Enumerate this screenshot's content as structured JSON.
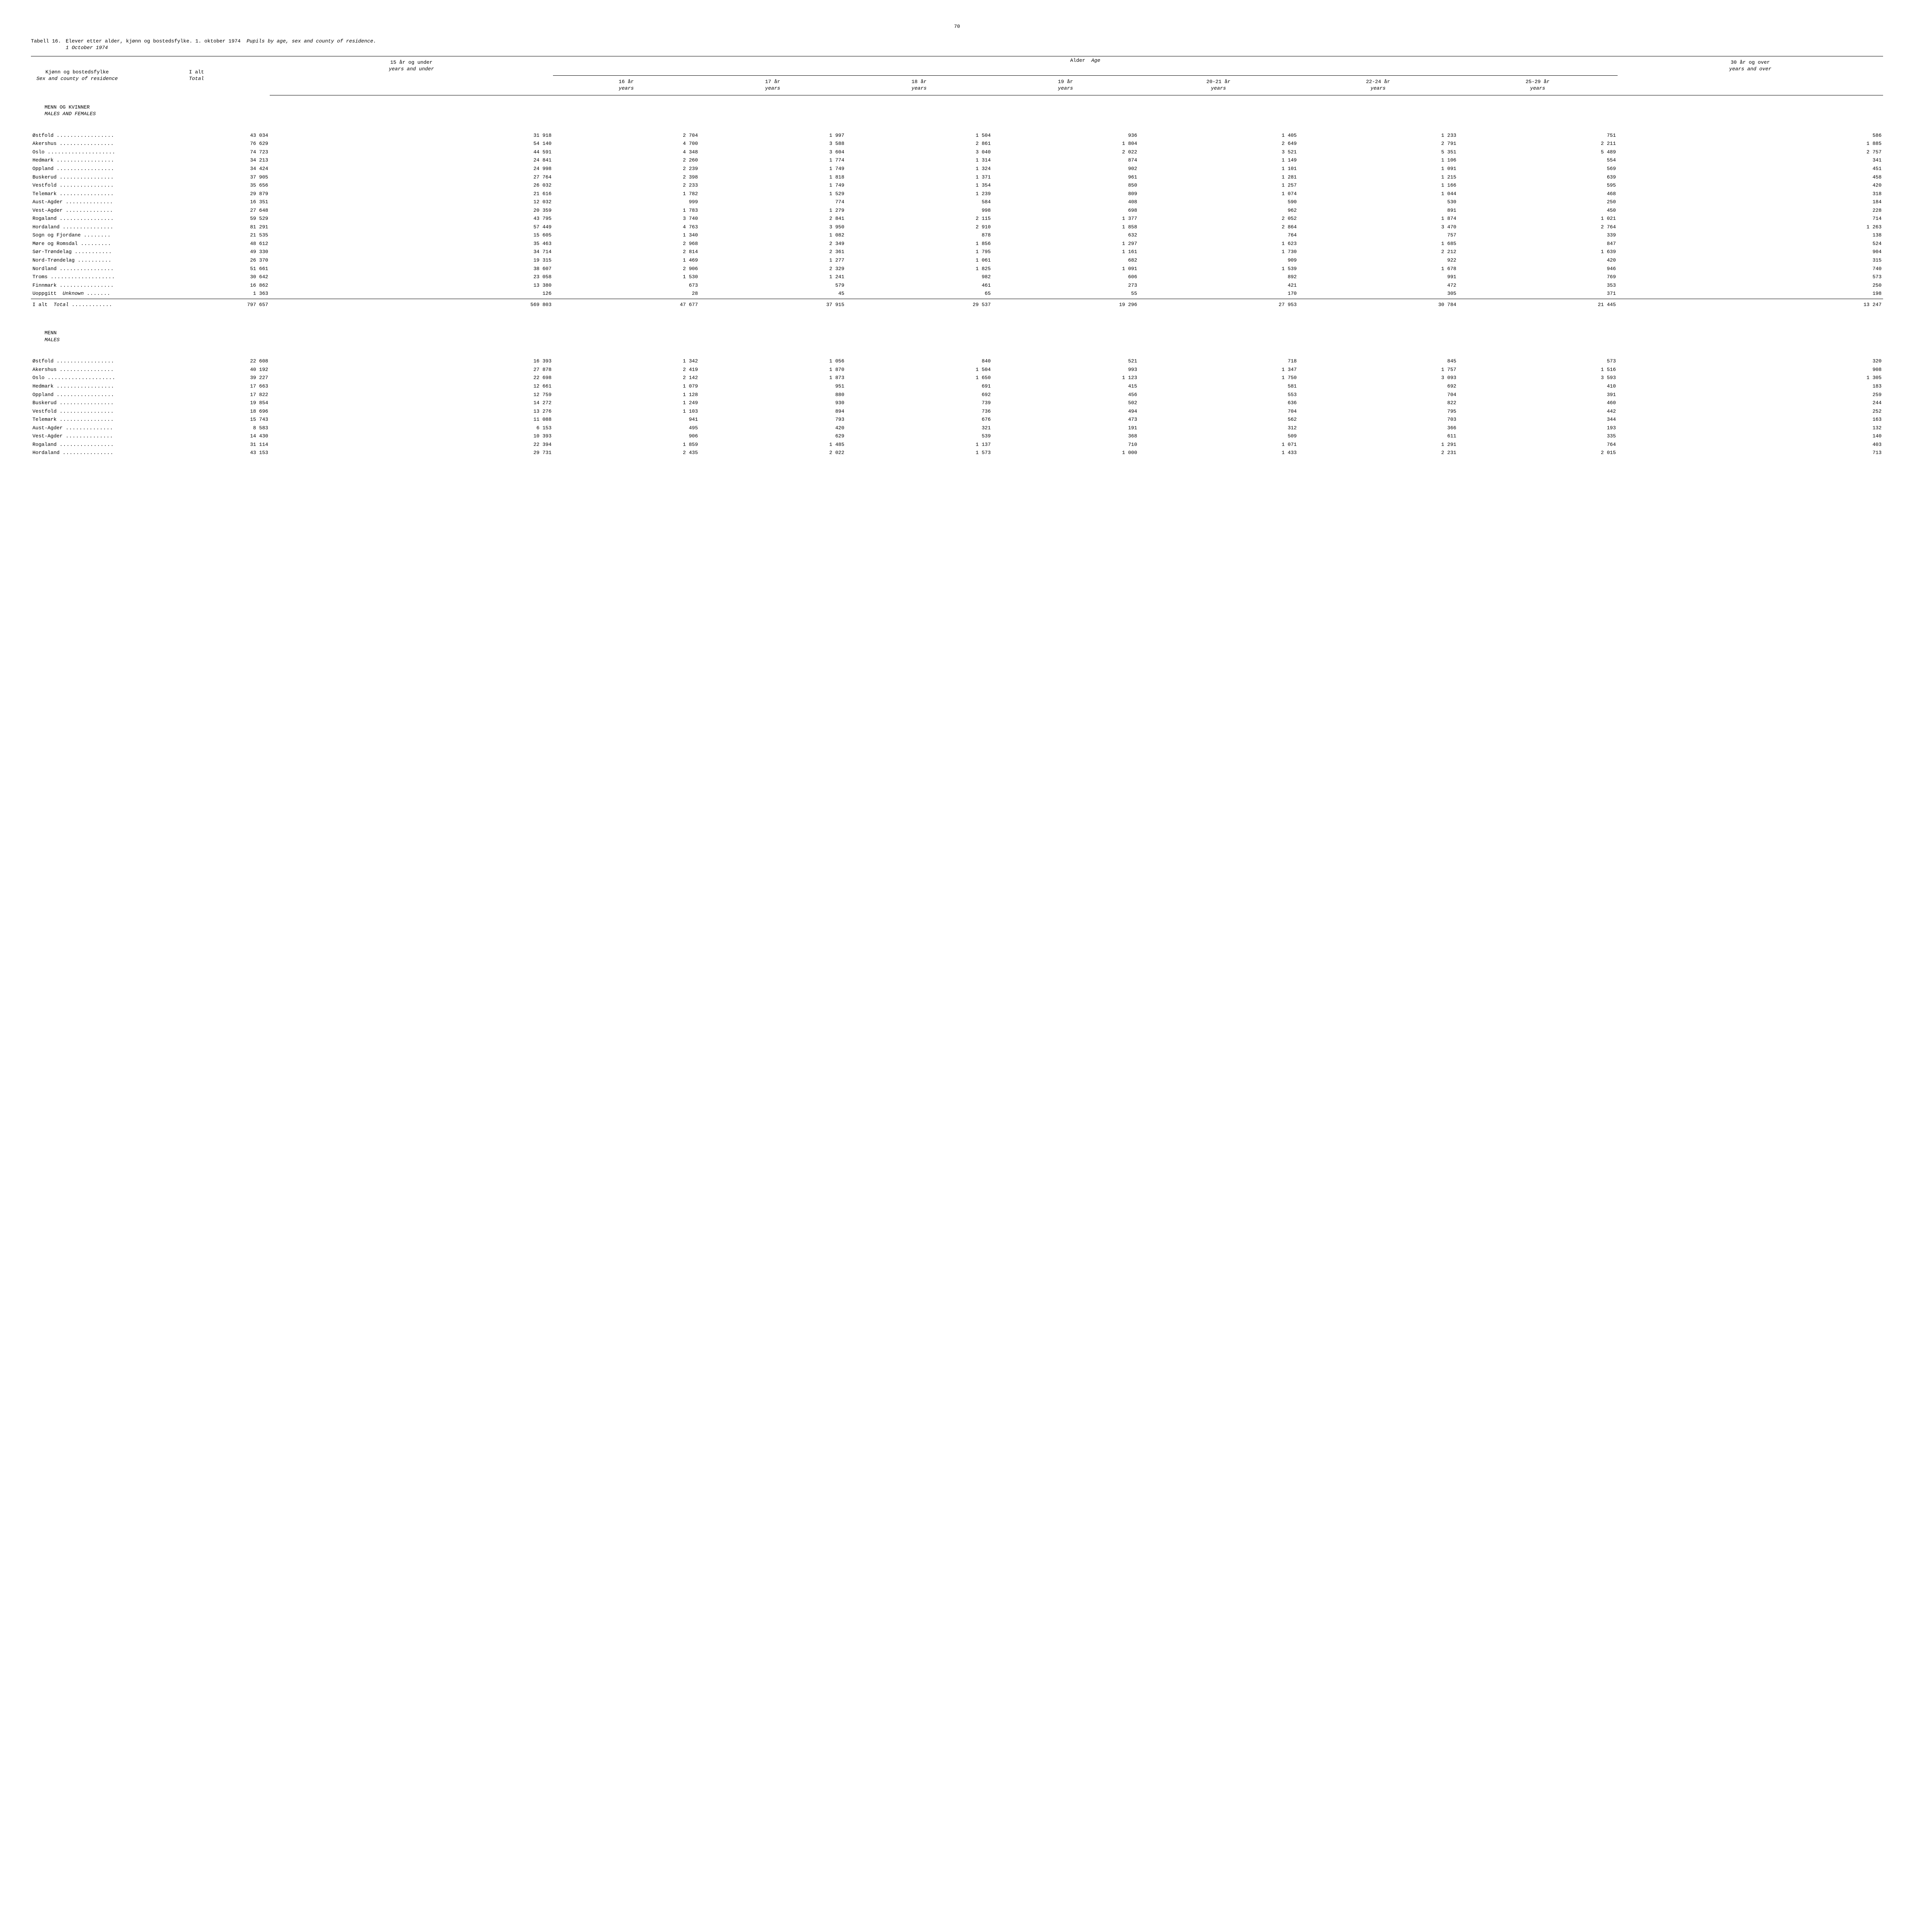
{
  "page_number": "70",
  "title": {
    "label": "Tabell 16.",
    "text_no": "Elever etter alder, kjønn og bostedsfylke.  1. oktober 1974",
    "text_en": "Pupils by age, sex and county of residence.",
    "subtitle_en": "1 October 1974"
  },
  "columns": {
    "county_no": "Kjønn og bostedsfylke",
    "county_en": "Sex and county of residence",
    "total_no": "I alt",
    "total_en": "Total",
    "age_header_no": "Alder",
    "age_header_en": "Age",
    "c15_no": "15 år og under",
    "c15_en": "years and under",
    "c16_no": "16 år",
    "c17_no": "17 år",
    "c18_no": "18 år",
    "c19_no": "19 år",
    "c2021_no": "20-21 år",
    "c2224_no": "22-24 år",
    "c2529_no": "25-29 år",
    "c30_no": "30 år og over",
    "c30_en": "years and over",
    "years_en": "years"
  },
  "sections": [
    {
      "heading_no": "MENN OG KVINNER",
      "heading_en": "MALES AND FEMALES",
      "rows": [
        {
          "name": "Østfold",
          "v": [
            "43 034",
            "31 918",
            "2 704",
            "1 997",
            "1 504",
            "936",
            "1 405",
            "1 233",
            "751",
            "586"
          ]
        },
        {
          "name": "Akershus",
          "v": [
            "76 629",
            "54 140",
            "4 700",
            "3 588",
            "2 861",
            "1 804",
            "2 649",
            "2 791",
            "2 211",
            "1 885"
          ]
        },
        {
          "name": "Oslo",
          "v": [
            "74 723",
            "44 591",
            "4 348",
            "3 604",
            "3 040",
            "2 022",
            "3 521",
            "5 351",
            "5 489",
            "2 757"
          ]
        },
        {
          "name": "Hedmark",
          "v": [
            "34 213",
            "24 841",
            "2 260",
            "1 774",
            "1 314",
            "874",
            "1 149",
            "1 106",
            "554",
            "341"
          ]
        },
        {
          "name": "Oppland",
          "v": [
            "34 424",
            "24 998",
            "2 239",
            "1 749",
            "1 324",
            "902",
            "1 101",
            "1 091",
            "569",
            "451"
          ]
        },
        {
          "name": "Buskerud",
          "v": [
            "37 905",
            "27 764",
            "2 398",
            "1 818",
            "1 371",
            "961",
            "1 281",
            "1 215",
            "639",
            "458"
          ]
        },
        {
          "name": "Vestfold",
          "v": [
            "35 656",
            "26 032",
            "2 233",
            "1 749",
            "1 354",
            "850",
            "1 257",
            "1 166",
            "595",
            "420"
          ]
        },
        {
          "name": "Telemark",
          "v": [
            "29 879",
            "21 616",
            "1 782",
            "1 529",
            "1 239",
            "809",
            "1 074",
            "1 044",
            "468",
            "318"
          ]
        },
        {
          "name": "Aust-Agder",
          "v": [
            "16 351",
            "12 032",
            "999",
            "774",
            "584",
            "408",
            "590",
            "530",
            "250",
            "184"
          ]
        },
        {
          "name": "Vest-Agder",
          "v": [
            "27 648",
            "20 359",
            "1 783",
            "1 279",
            "998",
            "698",
            "962",
            "891",
            "450",
            "228"
          ]
        },
        {
          "name": "Rogaland",
          "v": [
            "59 529",
            "43 795",
            "3 740",
            "2 841",
            "2 115",
            "1 377",
            "2 052",
            "1 874",
            "1 021",
            "714"
          ]
        },
        {
          "name": "Hordaland",
          "v": [
            "81 291",
            "57 449",
            "4 763",
            "3 950",
            "2 910",
            "1 858",
            "2 864",
            "3 470",
            "2 764",
            "1 263"
          ]
        },
        {
          "name": "Sogn og Fjordane",
          "v": [
            "21 535",
            "15 605",
            "1 340",
            "1 082",
            "878",
            "632",
            "764",
            "757",
            "339",
            "138"
          ]
        },
        {
          "name": "Møre og Romsdal",
          "v": [
            "48 612",
            "35 463",
            "2 968",
            "2 349",
            "1 856",
            "1 297",
            "1 623",
            "1 685",
            "847",
            "524"
          ]
        },
        {
          "name": "Sør-Trøndelag",
          "v": [
            "49 330",
            "34 714",
            "2 814",
            "2 361",
            "1 795",
            "1 161",
            "1 730",
            "2 212",
            "1 639",
            "904"
          ]
        },
        {
          "name": "Nord-Trøndelag",
          "v": [
            "26 370",
            "19 315",
            "1 469",
            "1 277",
            "1 061",
            "682",
            "909",
            "922",
            "420",
            "315"
          ]
        },
        {
          "name": "Nordland",
          "v": [
            "51 661",
            "38 607",
            "2 906",
            "2 329",
            "1 825",
            "1 091",
            "1 539",
            "1 678",
            "946",
            "740"
          ]
        },
        {
          "name": "Troms",
          "v": [
            "30 642",
            "23 058",
            "1 530",
            "1 241",
            "982",
            "606",
            "892",
            "991",
            "769",
            "573"
          ]
        },
        {
          "name": "Finnmark",
          "v": [
            "16 862",
            "13 380",
            "673",
            "579",
            "461",
            "273",
            "421",
            "472",
            "353",
            "250"
          ]
        },
        {
          "name": "Uoppgitt",
          "name_en": "Unknown",
          "v": [
            "1 363",
            "126",
            "28",
            "45",
            "65",
            "55",
            "170",
            "305",
            "371",
            "198"
          ]
        }
      ],
      "total": {
        "name": "I alt",
        "name_en": "Total",
        "v": [
          "797 657",
          "569 803",
          "47 677",
          "37 915",
          "29 537",
          "19 296",
          "27 953",
          "30 784",
          "21 445",
          "13 247"
        ]
      }
    },
    {
      "heading_no": "MENN",
      "heading_en": "MALES",
      "rows": [
        {
          "name": "Østfold",
          "v": [
            "22 608",
            "16 393",
            "1 342",
            "1 056",
            "840",
            "521",
            "718",
            "845",
            "573",
            "320"
          ]
        },
        {
          "name": "Akershus",
          "v": [
            "40 192",
            "27 878",
            "2 419",
            "1 870",
            "1 504",
            "993",
            "1 347",
            "1 757",
            "1 516",
            "908"
          ]
        },
        {
          "name": "Oslo",
          "v": [
            "39 227",
            "22 698",
            "2 142",
            "1 873",
            "1 650",
            "1 123",
            "1 750",
            "3 093",
            "3 593",
            "1 305"
          ]
        },
        {
          "name": "Hedmark",
          "v": [
            "17 663",
            "12 661",
            "1 079",
            "951",
            "691",
            "415",
            "581",
            "692",
            "410",
            "183"
          ]
        },
        {
          "name": "Oppland",
          "v": [
            "17 822",
            "12 759",
            "1 128",
            "880",
            "692",
            "456",
            "553",
            "704",
            "391",
            "259"
          ]
        },
        {
          "name": "Buskerud",
          "v": [
            "19 854",
            "14 272",
            "1 249",
            "930",
            "739",
            "502",
            "636",
            "822",
            "460",
            "244"
          ]
        },
        {
          "name": "Vestfold",
          "v": [
            "18 696",
            "13 276",
            "1 103",
            "894",
            "736",
            "494",
            "704",
            "795",
            "442",
            "252"
          ]
        },
        {
          "name": "Telemark",
          "v": [
            "15 743",
            "11 088",
            "941",
            "793",
            "676",
            "473",
            "562",
            "703",
            "344",
            "163"
          ]
        },
        {
          "name": "Aust-Agder",
          "v": [
            "8 583",
            "6 153",
            "495",
            "420",
            "321",
            "191",
            "312",
            "366",
            "193",
            "132"
          ]
        },
        {
          "name": "Vest-Agder",
          "v": [
            "14 430",
            "10 393",
            "906",
            "629",
            "539",
            "368",
            "509",
            "611",
            "335",
            "140"
          ]
        },
        {
          "name": "Rogaland",
          "v": [
            "31 114",
            "22 394",
            "1 859",
            "1 485",
            "1 137",
            "710",
            "1 071",
            "1 291",
            "764",
            "403"
          ]
        },
        {
          "name": "Hordaland",
          "v": [
            "43 153",
            "29 731",
            "2 435",
            "2 022",
            "1 573",
            "1 000",
            "1 433",
            "2 231",
            "2 015",
            "713"
          ]
        }
      ]
    }
  ],
  "style": {
    "background_color": "#ffffff",
    "text_color": "#000000",
    "font_family": "Courier New, monospace",
    "font_size_pt": 10,
    "border_color": "#000000",
    "dots_fill": " ......................"
  }
}
